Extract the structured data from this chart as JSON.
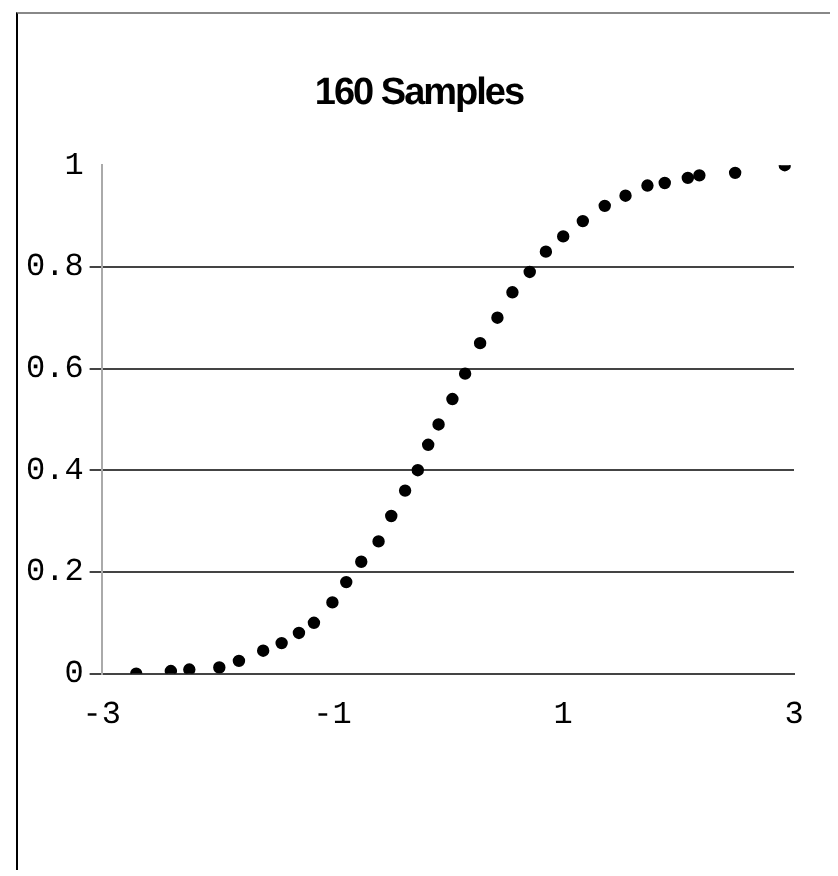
{
  "chart_data": {
    "type": "scatter",
    "title": "160 Samples",
    "x": [
      -2.7,
      -2.4,
      -2.24,
      -1.98,
      -1.81,
      -1.6,
      -1.44,
      -1.29,
      -1.16,
      -1.0,
      -0.88,
      -0.75,
      -0.6,
      -0.49,
      -0.37,
      -0.26,
      -0.17,
      -0.08,
      0.04,
      0.15,
      0.28,
      0.43,
      0.56,
      0.71,
      0.85,
      1.0,
      1.17,
      1.36,
      1.54,
      1.73,
      1.88,
      2.08,
      2.18,
      2.49,
      2.92
    ],
    "values": [
      0.0,
      0.005,
      0.008,
      0.012,
      0.025,
      0.045,
      0.06,
      0.08,
      0.1,
      0.14,
      0.18,
      0.22,
      0.26,
      0.31,
      0.36,
      0.4,
      0.45,
      0.49,
      0.54,
      0.59,
      0.65,
      0.7,
      0.75,
      0.79,
      0.83,
      0.86,
      0.89,
      0.92,
      0.94,
      0.96,
      0.965,
      0.975,
      0.98,
      0.985,
      1.0
    ],
    "color": "#000000",
    "marker": "circle",
    "xlim": [
      -3,
      3
    ],
    "xticks": [
      -3,
      -1,
      1,
      3
    ],
    "ylim": [
      0,
      1
    ],
    "yticks": [
      0,
      0.2,
      0.4,
      0.6,
      0.8,
      1
    ],
    "grid": "y"
  }
}
